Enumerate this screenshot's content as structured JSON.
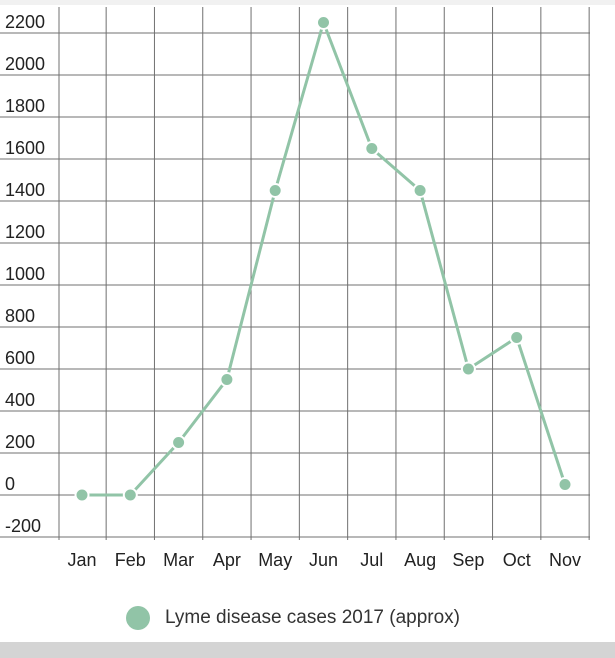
{
  "colors": {
    "series": "#91c4a7",
    "grid": "#707070",
    "text": "#222222"
  },
  "chart_data": {
    "type": "line",
    "title": "",
    "xlabel": "",
    "ylabel": "",
    "categories": [
      "Jan",
      "Feb",
      "Mar",
      "Apr",
      "May",
      "Jun",
      "Jul",
      "Aug",
      "Sep",
      "Oct",
      "Nov"
    ],
    "ylim": [
      -200,
      2200
    ],
    "yticks": [
      -200,
      0,
      200,
      400,
      600,
      800,
      1000,
      1200,
      1400,
      1600,
      1800,
      2000,
      2200
    ],
    "grid": true,
    "legend_position": "bottom",
    "series": [
      {
        "name": "Lyme disease cases 2017 (approx)",
        "values": [
          0,
          0,
          250,
          550,
          1450,
          2250,
          1650,
          1450,
          600,
          750,
          50
        ]
      }
    ]
  }
}
